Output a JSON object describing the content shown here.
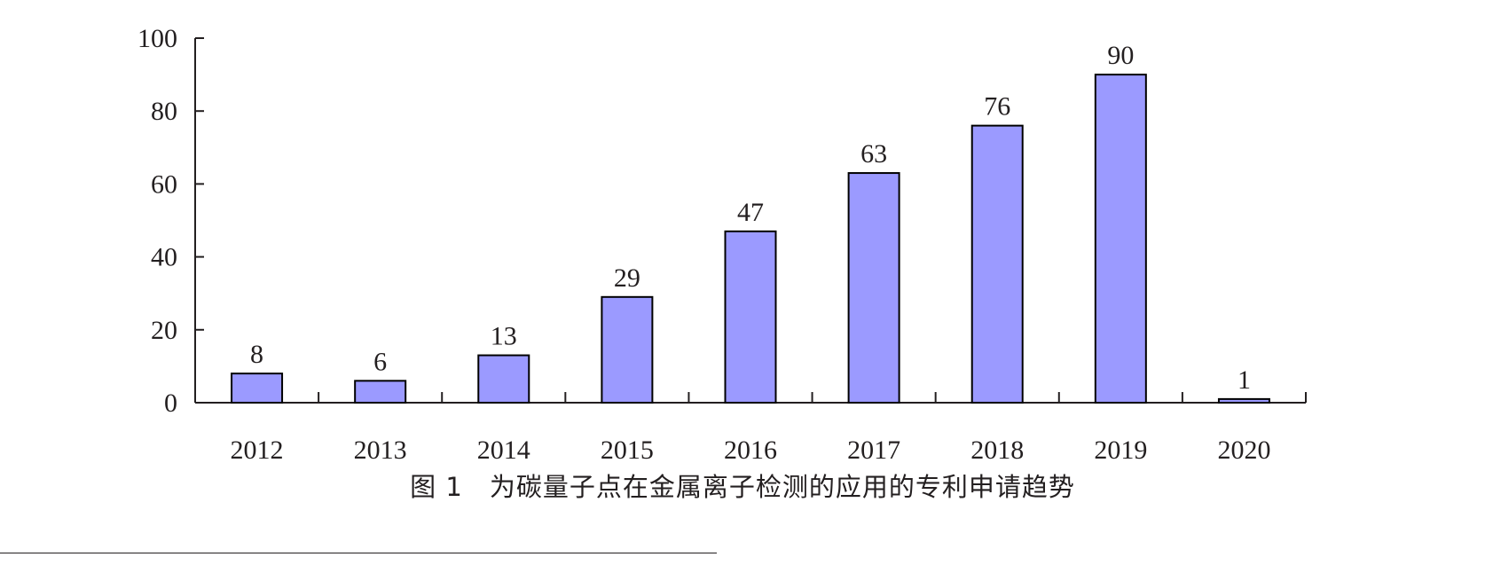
{
  "caption": "图 1　为碳量子点在金属离子检测的应用的专利申请趋势",
  "chart_data": {
    "type": "bar",
    "categories": [
      "2012",
      "2013",
      "2014",
      "2015",
      "2016",
      "2017",
      "2018",
      "2019",
      "2020"
    ],
    "values": [
      8,
      6,
      13,
      29,
      47,
      63,
      76,
      90,
      1
    ],
    "data_labels": [
      "8",
      "6",
      "13",
      "29",
      "47",
      "63",
      "76",
      "90",
      "1"
    ],
    "yticks": [
      "0",
      "20",
      "40",
      "60",
      "80",
      "100"
    ],
    "ylim": [
      0,
      100
    ],
    "bar_color": "#9b9aff",
    "bar_stroke": "#000000",
    "grid": false
  }
}
